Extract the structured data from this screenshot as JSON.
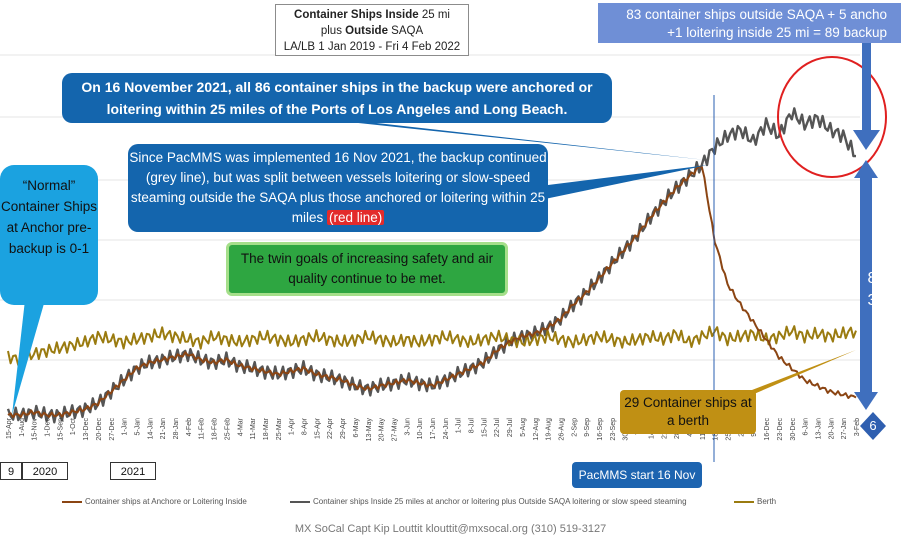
{
  "title": {
    "line1_bold": "Container Ships Inside",
    "line1_rest": " 25 mi",
    "line2_pre": "plus ",
    "line2_bold": "Outside",
    "line2_rest": " SAQA",
    "line3": "LA/LB 1 Jan 2019 - Fri 4 Feb 2022"
  },
  "annotations": {
    "top_right_line1": "83 container ships outside SAQA + 5 ancho",
    "top_right_line2": "+1 loitering inside 25 mi = 89 backup",
    "callout_top": "On 16 November 2021, all 86 container ships in the backup were anchored or loitering within 25 miles of the Ports of Los Angeles and Long Beach.",
    "callout_mid_pre": "Since PacMMS was implemented 16 Nov 2021, the backup continued (grey line), but was split between vessels loitering or slow-speed steaming outside the SAQA plus those anchored or loitering within 25 miles ",
    "callout_mid_red": "(red line)",
    "normal_box": "“Normal” Container Ships at Anchor pre-backup is 0-1",
    "green_box": "The twin goals of increasing safety and air quality continue to be met.",
    "berth_box": "29 Container ships at a berth",
    "pacmms_start": "PacMMS start 16 Nov",
    "side_label_83": "8\n3",
    "side_label_6": "6"
  },
  "years": [
    "9",
    "2020",
    "2021"
  ],
  "footer": "MX SoCal Capt Kip Louttit  klouttit@mxsocal.org  (310) 519-3127",
  "colors": {
    "anchor": "#8b4513",
    "total": "#555555",
    "berth": "#9a7b10",
    "arrow": "#3f6fbe",
    "circle": "#e02020"
  },
  "chart_data": {
    "type": "line",
    "title": "Container Ships Inside 25 mi plus Outside SAQA",
    "x_tick_labels": [
      "15-Apr",
      "1-Aug",
      "15-Nov",
      "1-Dec",
      "15-Sep",
      "1-Oct",
      "13-Dec",
      "20-Dec",
      "27-Dec",
      "1-Jan",
      "5-Jan",
      "14-Jan",
      "21-Jan",
      "28-Jan",
      "4-Feb",
      "11-Feb",
      "18-Feb",
      "25-Feb",
      "4-Mar",
      "11-Mar",
      "18-Mar",
      "25-Mar",
      "1-Apr",
      "8-Apr",
      "15-Apr",
      "22-Apr",
      "29-Apr",
      "6-May",
      "13-May",
      "20-May",
      "27-May",
      "3-Jun",
      "10-Jun",
      "17-Jun",
      "24-Jun",
      "1-Jul",
      "8-Jul",
      "15-Jul",
      "22-Jul",
      "29-Jul",
      "5-Aug",
      "12-Aug",
      "19-Aug",
      "26-Aug",
      "2-Sep",
      "9-Sep",
      "16-Sep",
      "23-Sep",
      "30-Sep",
      "7-Oct",
      "14-Oct",
      "21-Oct",
      "28-Oct",
      "4-Nov",
      "11-Nov",
      "18-Nov",
      "25-Nov",
      "2-Dec",
      "9-Dec",
      "16-Dec",
      "23-Dec",
      "30-Dec",
      "6-Jan",
      "13-Jan",
      "20-Jan",
      "27-Jan",
      "3-Feb"
    ],
    "series": [
      {
        "name": "Container ships at Anchore or Loitering Inside",
        "values": [
          0,
          0,
          1,
          0,
          0,
          1,
          2,
          4,
          8,
          12,
          16,
          18,
          19,
          20,
          21,
          19,
          18,
          19,
          17,
          16,
          15,
          14,
          15,
          16,
          14,
          13,
          12,
          10,
          9,
          10,
          11,
          12,
          11,
          10,
          12,
          14,
          16,
          18,
          22,
          25,
          27,
          28,
          30,
          33,
          38,
          42,
          47,
          52,
          57,
          62,
          68,
          73,
          78,
          82,
          86,
          60,
          45,
          38,
          32,
          26,
          20,
          16,
          12,
          10,
          8,
          7,
          6
        ]
      },
      {
        "name": "Container ships Inside 25 miles at anchor or loitering plus Outside SAQA loitering or slow speed steaming",
        "values": [
          0,
          0,
          1,
          0,
          0,
          1,
          2,
          4,
          8,
          12,
          16,
          18,
          19,
          20,
          21,
          19,
          18,
          19,
          17,
          16,
          15,
          14,
          15,
          16,
          14,
          13,
          12,
          10,
          9,
          10,
          11,
          12,
          11,
          10,
          12,
          14,
          16,
          18,
          22,
          25,
          27,
          28,
          30,
          33,
          38,
          42,
          47,
          52,
          57,
          62,
          68,
          73,
          78,
          82,
          86,
          92,
          96,
          98,
          94,
          100,
          96,
          104,
          100,
          102,
          98,
          96,
          89
        ]
      },
      {
        "name": "Berth",
        "values": [
          20,
          19,
          21,
          22,
          23,
          24,
          25,
          27,
          26,
          25,
          26,
          27,
          28,
          27,
          26,
          25,
          27,
          26,
          25,
          26,
          27,
          26,
          25,
          26,
          27,
          26,
          25,
          26,
          27,
          26,
          25,
          26,
          25,
          26,
          27,
          26,
          25,
          26,
          27,
          26,
          25,
          26,
          27,
          26,
          25,
          26,
          27,
          26,
          25,
          26,
          27,
          26,
          28,
          25,
          27,
          29,
          26,
          27,
          28,
          26,
          27,
          29,
          27,
          28,
          27,
          28,
          29
        ]
      }
    ]
  },
  "legend": [
    {
      "label": "Container ships at Anchore or Loitering Inside"
    },
    {
      "label": "Container ships Inside 25 miles at anchor or loitering plus Outside SAQA loitering or slow speed steaming"
    },
    {
      "label": "Berth"
    }
  ]
}
